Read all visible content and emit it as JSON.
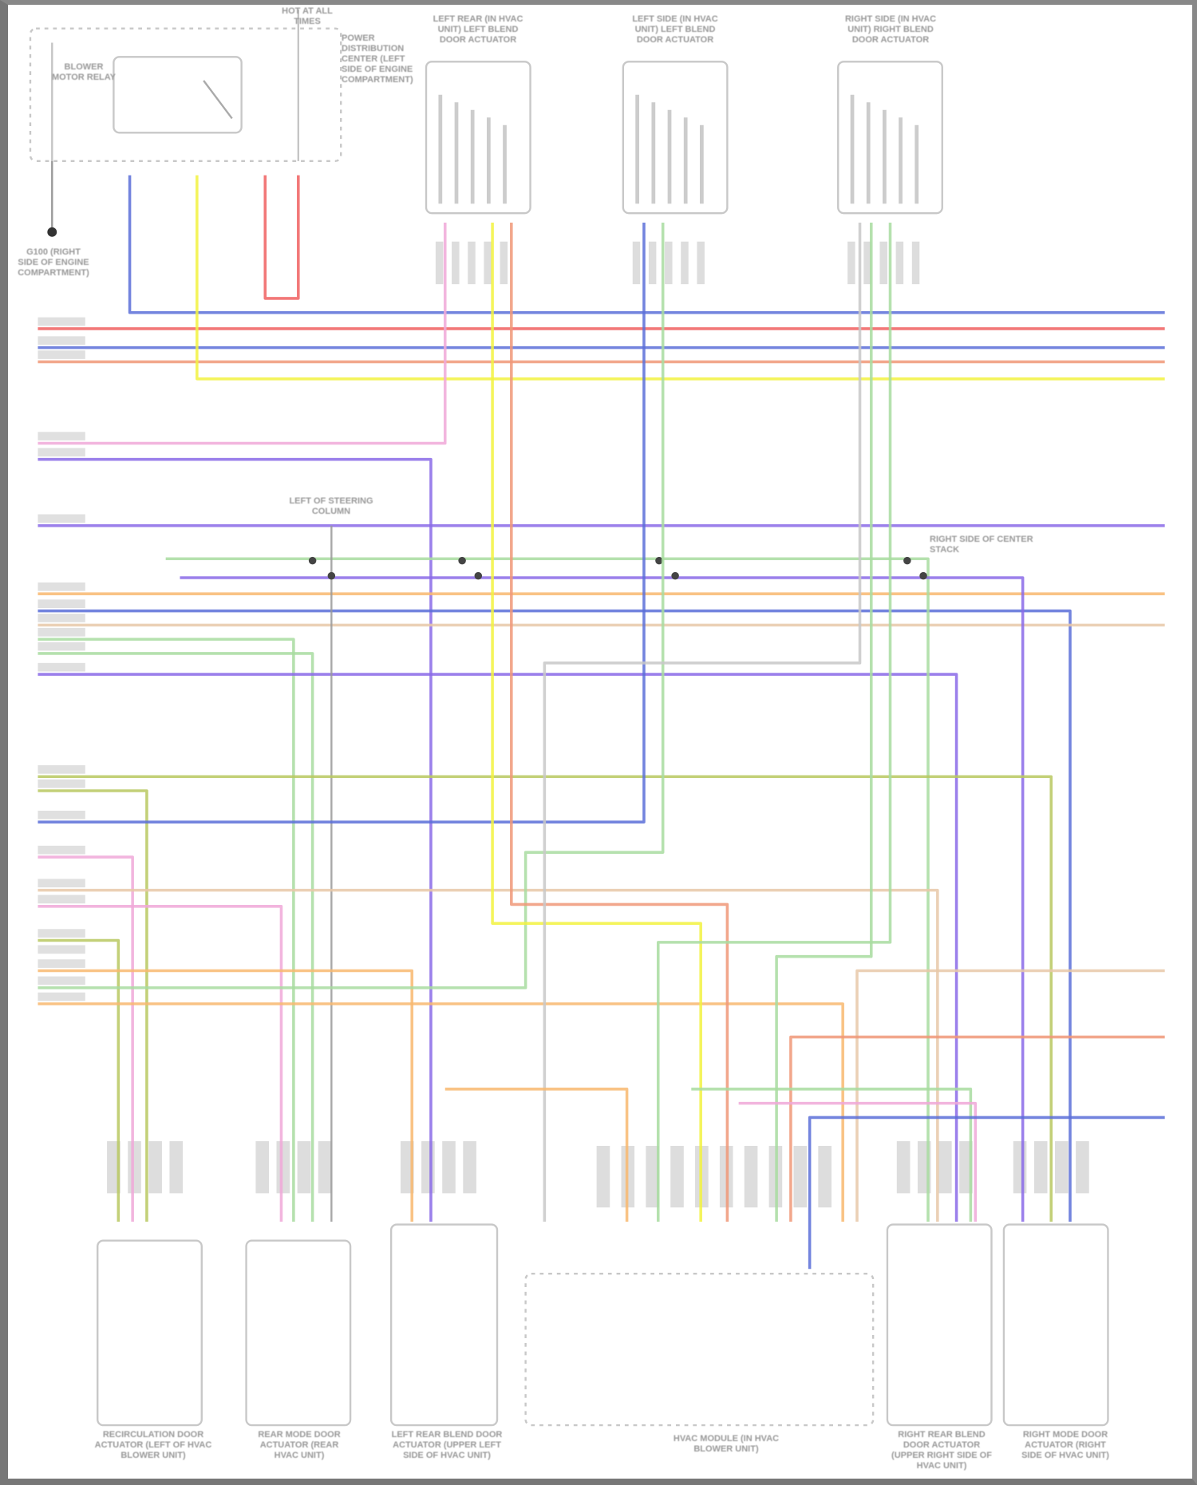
{
  "components": {
    "power_source": "HOT AT ALL TIMES",
    "relay": "BLOWER MOTOR RELAY",
    "pdc": "POWER DISTRIBUTION CENTER (LEFT SIDE OF ENGINE COMPARTMENT)",
    "ground": "G100 (RIGHT SIDE OF ENGINE COMPARTMENT)",
    "top_actuators": [
      "LEFT REAR (IN HVAC UNIT) LEFT BLEND DOOR ACTUATOR",
      "LEFT SIDE (IN HVAC UNIT) LEFT BLEND DOOR ACTUATOR",
      "RIGHT SIDE (IN HVAC UNIT) RIGHT BLEND DOOR ACTUATOR"
    ],
    "splice_left": "LEFT OF STEERING COLUMN",
    "splice_right": "RIGHT SIDE OF CENTER STACK",
    "bottom_modules": [
      "RECIRCULATION DOOR ACTUATOR (LEFT OF HVAC BLOWER UNIT)",
      "REAR MODE DOOR ACTUATOR (REAR HVAC UNIT)",
      "LEFT REAR BLEND DOOR ACTUATOR (UPPER LEFT SIDE OF HVAC UNIT)",
      "HVAC MODULE (IN HVAC BLOWER UNIT)",
      "RIGHT REAR BLEND DOOR ACTUATOR (UPPER RIGHT SIDE OF HVAC UNIT)",
      "RIGHT MODE DOOR ACTUATOR (RIGHT SIDE OF HVAC UNIT)"
    ]
  },
  "wire_colors": {
    "blue": "#5a6fd8",
    "red": "#f06060",
    "yellow": "#f2f240",
    "purple": "#8a6ae8",
    "pink": "#f0a8d8",
    "orange": "#f8b870",
    "green": "#a8dca0",
    "olive": "#b8c860",
    "tan": "#e8c8a8",
    "salmon": "#f09878",
    "gray": "#c8c8c8"
  }
}
